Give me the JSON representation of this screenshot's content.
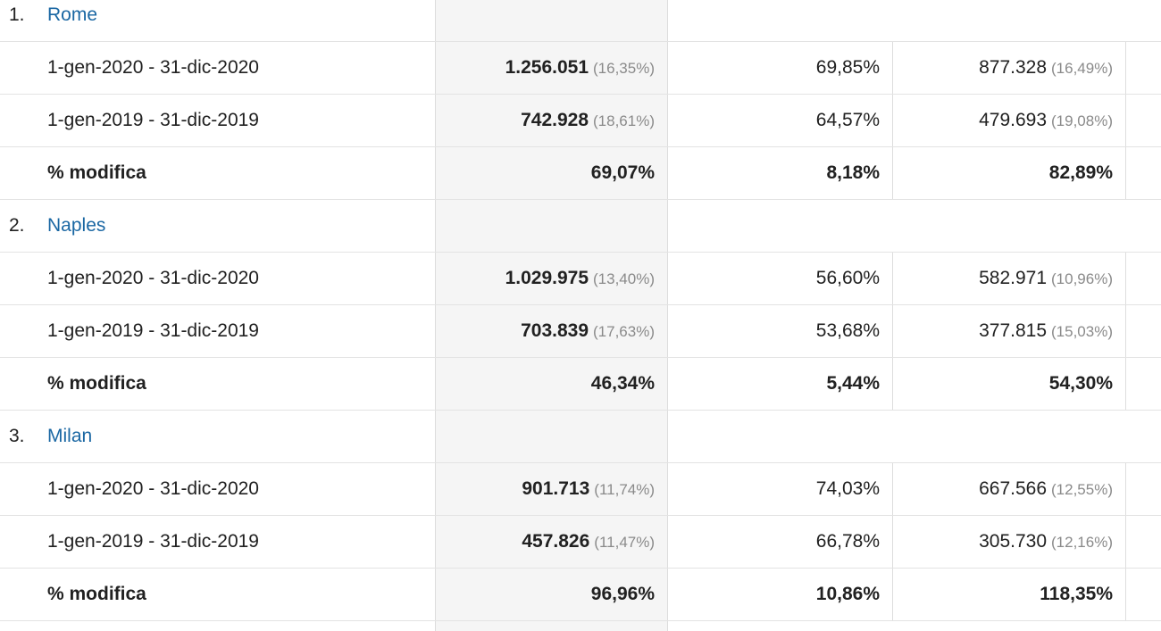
{
  "cities": [
    {
      "index": "1.",
      "name": "Rome",
      "rows": [
        {
          "label": "1-gen-2020 - 31-dic-2020",
          "c1": "1.256.051",
          "c1_pct": "(16,35%)",
          "c2": "69,85%",
          "c3": "877.328",
          "c3_pct": "(16,49%)"
        },
        {
          "label": "1-gen-2019 - 31-dic-2019",
          "c1": "742.928",
          "c1_pct": "(18,61%)",
          "c2": "64,57%",
          "c3": "479.693",
          "c3_pct": "(19,08%)"
        }
      ],
      "change": {
        "label": "% modifica",
        "c1": "69,07%",
        "c2": "8,18%",
        "c3": "82,89%"
      }
    },
    {
      "index": "2.",
      "name": "Naples",
      "rows": [
        {
          "label": "1-gen-2020 - 31-dic-2020",
          "c1": "1.029.975",
          "c1_pct": "(13,40%)",
          "c2": "56,60%",
          "c3": "582.971",
          "c3_pct": "(10,96%)"
        },
        {
          "label": "1-gen-2019 - 31-dic-2019",
          "c1": "703.839",
          "c1_pct": "(17,63%)",
          "c2": "53,68%",
          "c3": "377.815",
          "c3_pct": "(15,03%)"
        }
      ],
      "change": {
        "label": "% modifica",
        "c1": "46,34%",
        "c2": "5,44%",
        "c3": "54,30%"
      }
    },
    {
      "index": "3.",
      "name": "Milan",
      "rows": [
        {
          "label": "1-gen-2020 - 31-dic-2020",
          "c1": "901.713",
          "c1_pct": "(11,74%)",
          "c2": "74,03%",
          "c3": "667.566",
          "c3_pct": "(12,55%)"
        },
        {
          "label": "1-gen-2019 - 31-dic-2019",
          "c1": "457.826",
          "c1_pct": "(11,47%)",
          "c2": "66,78%",
          "c3": "305.730",
          "c3_pct": "(12,16%)"
        }
      ],
      "change": {
        "label": "% modifica",
        "c1": "96,96%",
        "c2": "10,86%",
        "c3": "118,35%"
      }
    }
  ]
}
